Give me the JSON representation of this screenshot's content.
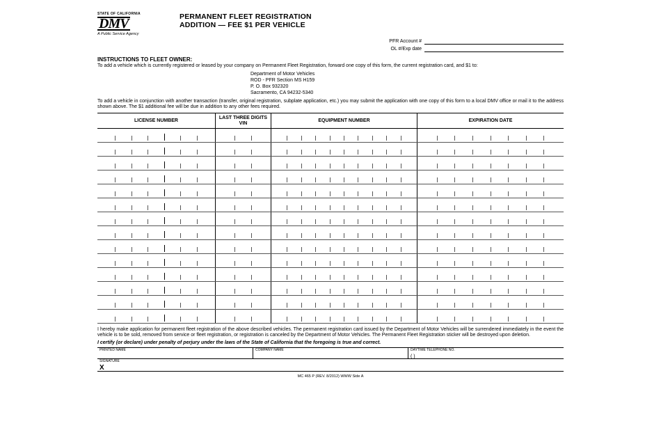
{
  "logo": {
    "state": "STATE OF CALIFORNIA",
    "dmv": "DMV",
    "tag": "A Public Service Agency"
  },
  "title": {
    "line1": "PERMANENT FLEET REGISTRATION",
    "line2": "ADDITION — FEE $1 PER VEHICLE"
  },
  "acct": {
    "pfr_label": "PFR Account #",
    "ol_label": "OL #/Exp date"
  },
  "instr_hdr": "INSTRUCTIONS TO FLEET OWNER:",
  "para_add": "To add a vehicle which is currently registered or leased by your company on Permanent Fleet Registration, forward one copy of this form, the current registration card, and $1 to:",
  "address": {
    "l1": "Department of Motor Vehicles",
    "l2": "ROD - PFR Section MS H159",
    "l3": "P. O. Box 932320",
    "l4": "Sacramento, CA 94232-5340"
  },
  "para_conj": "To add a vehicle in conjunction with another transaction (transfer, original registration, subplate application, etc.) you may submit the application with one copy of this form to a local DMV office or mail it to the address shown above. The $1 additional fee will be due in addition to any other fees required.",
  "columns": {
    "lic": "LICENSE NUMBER",
    "vin": "LAST THREE DIGITS VIN",
    "eq": "EQUIPMENT NUMBER",
    "exp": "EXPIRATION DATE"
  },
  "row_count": 14,
  "ticks": {
    "lic": 7,
    "lic_tall_at": 4,
    "vin": 3,
    "eq": 10,
    "exp": 8
  },
  "declaration": "I hereby make application for permanent fleet registration of the above described vehicles. The permanent registration card issued by the Department of Motor Vehicles will be surrendered immediately in the event the vehicle is to be sold, removed from service or fleet registration, or registration is canceled by the Department of Motor Vehicles. The Permanent Fleet Registration sticker will be destroyed upon deletion.",
  "certify": "I certify (or declare) under penalty of perjury under the laws of the State of California that the foregoing is true and correct.",
  "sig": {
    "printed": "PRINTED NAME",
    "company": "COMPANY NAME",
    "tel": "DAYTIME TELEPHONE NO.",
    "tel_paren": "(          )",
    "signature": "SIGNATURE",
    "x": "X"
  },
  "footer": "MC 465 P (REV. 8/2012) WWW     Side A",
  "colors": {
    "text": "#000000",
    "bg": "#ffffff",
    "rule": "#555555"
  }
}
